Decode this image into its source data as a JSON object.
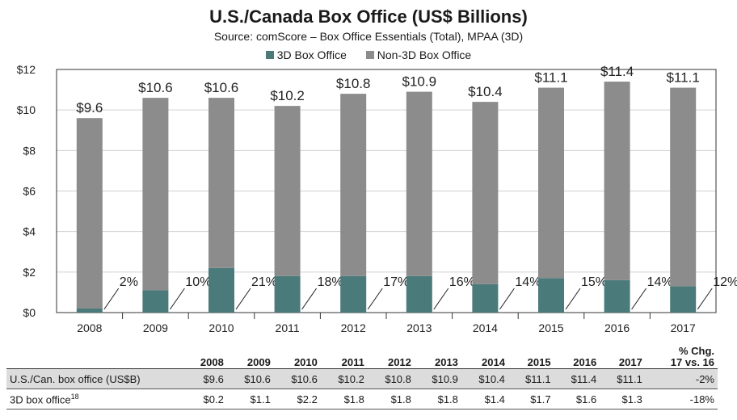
{
  "chart_data": {
    "type": "bar",
    "stacked": true,
    "title": "U.S./Canada Box Office (US$ Billions)",
    "subtitle": "Source: comScore – Box Office Essentials (Total), MPAA (3D)",
    "categories": [
      "2008",
      "2009",
      "2010",
      "2011",
      "2012",
      "2013",
      "2014",
      "2015",
      "2016",
      "2017"
    ],
    "series": [
      {
        "name": "3D Box Office",
        "color": "#4a7a7a",
        "values": [
          0.2,
          1.1,
          2.2,
          1.8,
          1.8,
          1.8,
          1.4,
          1.7,
          1.6,
          1.3
        ]
      },
      {
        "name": "Non-3D Box Office",
        "color": "#8c8c8c",
        "values": [
          9.4,
          9.5,
          8.4,
          8.4,
          9.0,
          9.1,
          9.0,
          9.4,
          9.8,
          9.8
        ]
      }
    ],
    "totals": [
      9.6,
      10.6,
      10.6,
      10.2,
      10.8,
      10.9,
      10.4,
      11.1,
      11.4,
      11.1
    ],
    "total_labels": [
      "$9.6",
      "$10.6",
      "$10.6",
      "$10.2",
      "$10.8",
      "$10.9",
      "$10.4",
      "$11.1",
      "$11.4",
      "$11.1"
    ],
    "share_labels": [
      "2%",
      "10%",
      "21%",
      "18%",
      "17%",
      "16%",
      "14%",
      "15%",
      "14%",
      "12%"
    ],
    "ylim": [
      0,
      12
    ],
    "yticks": [
      0,
      2,
      4,
      6,
      8,
      10,
      12
    ],
    "ytick_labels": [
      "$0",
      "$2",
      "$4",
      "$6",
      "$8",
      "$10",
      "$12"
    ],
    "xlabel": "",
    "ylabel": "",
    "legend_position": "top-center"
  },
  "table": {
    "header": [
      "2008",
      "2009",
      "2010",
      "2011",
      "2012",
      "2013",
      "2014",
      "2015",
      "2016",
      "2017"
    ],
    "chg_header_line1": "% Chg.",
    "chg_header_line2": "17 vs. 16",
    "rows": [
      {
        "label": "U.S./Can. box office (US$B)",
        "footnote": "",
        "values": [
          "$9.6",
          "$10.6",
          "$10.6",
          "$10.2",
          "$10.8",
          "$10.9",
          "$10.4",
          "$11.1",
          "$11.4",
          "$11.1"
        ],
        "chg": "-2%"
      },
      {
        "label": "3D box office",
        "footnote": "18",
        "values": [
          "$0.2",
          "$1.1",
          "$2.2",
          "$1.8",
          "$1.8",
          "$1.8",
          "$1.4",
          "$1.7",
          "$1.6",
          "$1.3"
        ],
        "chg": "-18%"
      }
    ]
  }
}
